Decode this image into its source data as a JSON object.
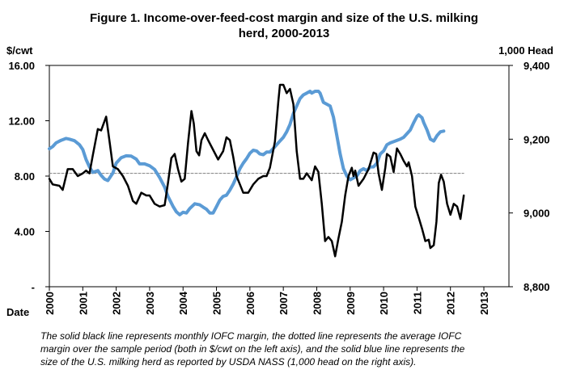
{
  "chart_data": {
    "type": "line",
    "title_lines": [
      "Figure 1. Income-over-feed-cost  margin and size of the U.S. milking",
      "herd, 2000-2013"
    ],
    "ylabel_left": "$/cwt",
    "ylabel_right": "1,000 Head",
    "xlabel": "Date",
    "left_axis": {
      "ylim": [
        0,
        16
      ],
      "ticks": [
        16,
        12,
        8,
        4,
        0
      ],
      "tick_labels": [
        "16.00",
        "12.00",
        "8.00",
        "4.00",
        "-"
      ]
    },
    "right_axis": {
      "ylim": [
        8800,
        9400
      ],
      "ticks": [
        9400,
        9200,
        9000,
        8800
      ],
      "tick_labels": [
        "9,400",
        "9,200",
        "9,000",
        "8,800"
      ]
    },
    "x_axis": {
      "xlim": [
        2000.0,
        2013.75
      ],
      "ticks": [
        2000,
        2001,
        2002,
        2003,
        2004,
        2005,
        2006,
        2007,
        2008,
        2009,
        2010,
        2011,
        2012,
        2013
      ],
      "tick_labels": [
        "2000",
        "2001",
        "2002",
        "2003",
        "2004",
        "2005",
        "2006",
        "2007",
        "2008",
        "2009",
        "2010",
        "2011",
        "2012",
        "2013"
      ]
    },
    "grid": false,
    "series": [
      {
        "name": "IOFC margin ($/cwt)",
        "axis": "left",
        "color": "#000000",
        "style": "solid",
        "points": [
          [
            2000.0,
            7.8
          ],
          [
            2000.1,
            7.4
          ],
          [
            2000.3,
            7.3
          ],
          [
            2000.4,
            7.0
          ],
          [
            2000.55,
            8.5
          ],
          [
            2000.7,
            8.5
          ],
          [
            2000.85,
            8.0
          ],
          [
            2001.0,
            8.2
          ],
          [
            2001.1,
            8.4
          ],
          [
            2001.2,
            8.2
          ],
          [
            2001.3,
            9.5
          ],
          [
            2001.45,
            11.4
          ],
          [
            2001.55,
            11.3
          ],
          [
            2001.7,
            12.3
          ],
          [
            2001.8,
            10.5
          ],
          [
            2001.9,
            8.7
          ],
          [
            2002.05,
            8.5
          ],
          [
            2002.2,
            8.0
          ],
          [
            2002.35,
            7.3
          ],
          [
            2002.5,
            6.2
          ],
          [
            2002.6,
            6.0
          ],
          [
            2002.75,
            6.8
          ],
          [
            2002.9,
            6.6
          ],
          [
            2003.0,
            6.6
          ],
          [
            2003.15,
            6.0
          ],
          [
            2003.3,
            5.8
          ],
          [
            2003.45,
            5.9
          ],
          [
            2003.55,
            7.5
          ],
          [
            2003.65,
            9.3
          ],
          [
            2003.75,
            9.6
          ],
          [
            2003.85,
            8.5
          ],
          [
            2003.95,
            7.6
          ],
          [
            2004.05,
            7.8
          ],
          [
            2004.15,
            10.4
          ],
          [
            2004.25,
            12.7
          ],
          [
            2004.32,
            11.8
          ],
          [
            2004.4,
            9.8
          ],
          [
            2004.48,
            9.5
          ],
          [
            2004.55,
            10.6
          ],
          [
            2004.65,
            11.1
          ],
          [
            2004.75,
            10.6
          ],
          [
            2004.9,
            9.9
          ],
          [
            2005.05,
            9.2
          ],
          [
            2005.2,
            9.8
          ],
          [
            2005.3,
            10.8
          ],
          [
            2005.4,
            10.6
          ],
          [
            2005.5,
            9.4
          ],
          [
            2005.6,
            8.0
          ],
          [
            2005.7,
            7.4
          ],
          [
            2005.8,
            6.8
          ],
          [
            2005.95,
            6.8
          ],
          [
            2006.1,
            7.4
          ],
          [
            2006.25,
            7.8
          ],
          [
            2006.4,
            8.0
          ],
          [
            2006.5,
            8.0
          ],
          [
            2006.6,
            8.6
          ],
          [
            2006.75,
            10.5
          ],
          [
            2006.85,
            13.4
          ],
          [
            2006.9,
            14.6
          ],
          [
            2007.0,
            14.6
          ],
          [
            2007.1,
            14.0
          ],
          [
            2007.2,
            14.3
          ],
          [
            2007.3,
            13.2
          ],
          [
            2007.4,
            9.8
          ],
          [
            2007.5,
            7.8
          ],
          [
            2007.6,
            7.8
          ],
          [
            2007.7,
            8.2
          ],
          [
            2007.85,
            7.7
          ],
          [
            2007.95,
            8.7
          ],
          [
            2008.05,
            8.3
          ],
          [
            2008.15,
            6.0
          ],
          [
            2008.25,
            3.3
          ],
          [
            2008.35,
            3.6
          ],
          [
            2008.45,
            3.3
          ],
          [
            2008.55,
            2.2
          ],
          [
            2008.65,
            3.5
          ],
          [
            2008.75,
            4.7
          ],
          [
            2008.85,
            6.6
          ],
          [
            2008.95,
            8.0
          ],
          [
            2009.05,
            8.6
          ],
          [
            2009.1,
            8.0
          ],
          [
            2009.15,
            8.4
          ],
          [
            2009.25,
            7.3
          ],
          [
            2009.4,
            7.8
          ],
          [
            2009.55,
            8.5
          ],
          [
            2009.7,
            9.7
          ],
          [
            2009.78,
            9.6
          ],
          [
            2009.85,
            8.2
          ],
          [
            2009.95,
            7.0
          ],
          [
            2010.05,
            8.6
          ],
          [
            2010.1,
            9.6
          ],
          [
            2010.2,
            9.4
          ],
          [
            2010.3,
            8.3
          ],
          [
            2010.4,
            10.0
          ],
          [
            2010.5,
            9.6
          ],
          [
            2010.6,
            9.1
          ],
          [
            2010.7,
            8.7
          ],
          [
            2010.75,
            9.0
          ],
          [
            2010.85,
            8.0
          ],
          [
            2010.95,
            5.8
          ],
          [
            2011.05,
            5.0
          ],
          [
            2011.15,
            4.2
          ],
          [
            2011.25,
            3.3
          ],
          [
            2011.35,
            3.4
          ],
          [
            2011.4,
            2.8
          ],
          [
            2011.5,
            3.0
          ],
          [
            2011.58,
            4.7
          ],
          [
            2011.65,
            7.5
          ],
          [
            2011.72,
            8.1
          ],
          [
            2011.8,
            7.6
          ],
          [
            2011.9,
            6.0
          ],
          [
            2012.0,
            5.2
          ],
          [
            2012.1,
            6.0
          ],
          [
            2012.2,
            5.8
          ],
          [
            2012.3,
            4.9
          ],
          [
            2012.4,
            6.6
          ]
        ]
      },
      {
        "name": "Average IOFC margin ($/cwt)",
        "axis": "left",
        "color": "#808080",
        "style": "dotted",
        "points": [
          [
            2000.0,
            8.2
          ],
          [
            2012.4,
            8.2
          ]
        ]
      },
      {
        "name": "U.S. milking herd (1,000 head)",
        "axis": "right",
        "color": "#5b9bd5",
        "style": "solid",
        "points": [
          [
            2000.0,
            9174
          ],
          [
            2000.1,
            9180
          ],
          [
            2000.2,
            9190
          ],
          [
            2000.35,
            9197
          ],
          [
            2000.5,
            9202
          ],
          [
            2000.6,
            9200
          ],
          [
            2000.75,
            9196
          ],
          [
            2000.9,
            9185
          ],
          [
            2001.0,
            9172
          ],
          [
            2001.1,
            9145
          ],
          [
            2001.2,
            9125
          ],
          [
            2001.3,
            9110
          ],
          [
            2001.45,
            9115
          ],
          [
            2001.55,
            9102
          ],
          [
            2001.65,
            9092
          ],
          [
            2001.75,
            9088
          ],
          [
            2001.9,
            9108
          ],
          [
            2002.0,
            9135
          ],
          [
            2002.15,
            9150
          ],
          [
            2002.3,
            9155
          ],
          [
            2002.45,
            9154
          ],
          [
            2002.6,
            9146
          ],
          [
            2002.7,
            9133
          ],
          [
            2002.85,
            9133
          ],
          [
            2003.0,
            9128
          ],
          [
            2003.15,
            9118
          ],
          [
            2003.3,
            9096
          ],
          [
            2003.45,
            9070
          ],
          [
            2003.55,
            9045
          ],
          [
            2003.7,
            9018
          ],
          [
            2003.8,
            9003
          ],
          [
            2003.9,
            8995
          ],
          [
            2004.0,
            9002
          ],
          [
            2004.1,
            9000
          ],
          [
            2004.2,
            9012
          ],
          [
            2004.35,
            9025
          ],
          [
            2004.5,
            9022
          ],
          [
            2004.6,
            9016
          ],
          [
            2004.7,
            9010
          ],
          [
            2004.8,
            9000
          ],
          [
            2004.9,
            9000
          ],
          [
            2005.0,
            9017
          ],
          [
            2005.1,
            9035
          ],
          [
            2005.2,
            9045
          ],
          [
            2005.3,
            9048
          ],
          [
            2005.4,
            9062
          ],
          [
            2005.5,
            9078
          ],
          [
            2005.6,
            9098
          ],
          [
            2005.7,
            9120
          ],
          [
            2005.8,
            9135
          ],
          [
            2005.9,
            9147
          ],
          [
            2006.0,
            9162
          ],
          [
            2006.1,
            9170
          ],
          [
            2006.2,
            9168
          ],
          [
            2006.3,
            9160
          ],
          [
            2006.4,
            9158
          ],
          [
            2006.5,
            9165
          ],
          [
            2006.6,
            9165
          ],
          [
            2006.7,
            9175
          ],
          [
            2006.8,
            9185
          ],
          [
            2006.9,
            9195
          ],
          [
            2007.0,
            9205
          ],
          [
            2007.1,
            9220
          ],
          [
            2007.2,
            9240
          ],
          [
            2007.3,
            9270
          ],
          [
            2007.4,
            9290
          ],
          [
            2007.5,
            9310
          ],
          [
            2007.6,
            9320
          ],
          [
            2007.7,
            9325
          ],
          [
            2007.8,
            9330
          ],
          [
            2007.85,
            9325
          ],
          [
            2007.95,
            9330
          ],
          [
            2008.05,
            9330
          ],
          [
            2008.1,
            9325
          ],
          [
            2008.2,
            9300
          ],
          [
            2008.3,
            9295
          ],
          [
            2008.4,
            9290
          ],
          [
            2008.5,
            9260
          ],
          [
            2008.6,
            9210
          ],
          [
            2008.7,
            9160
          ],
          [
            2008.8,
            9120
          ],
          [
            2008.9,
            9100
          ],
          [
            2009.0,
            9090
          ],
          [
            2009.1,
            9095
          ],
          [
            2009.2,
            9100
          ],
          [
            2009.3,
            9115
          ],
          [
            2009.4,
            9120
          ],
          [
            2009.5,
            9115
          ],
          [
            2009.6,
            9125
          ],
          [
            2009.7,
            9125
          ],
          [
            2009.8,
            9135
          ],
          [
            2009.9,
            9160
          ],
          [
            2010.0,
            9168
          ],
          [
            2010.1,
            9185
          ],
          [
            2010.2,
            9190
          ],
          [
            2010.35,
            9195
          ],
          [
            2010.5,
            9200
          ],
          [
            2010.6,
            9205
          ],
          [
            2010.7,
            9215
          ],
          [
            2010.8,
            9225
          ],
          [
            2010.9,
            9245
          ],
          [
            2011.0,
            9262
          ],
          [
            2011.05,
            9266
          ],
          [
            2011.15,
            9258
          ],
          [
            2011.2,
            9245
          ],
          [
            2011.3,
            9225
          ],
          [
            2011.4,
            9200
          ],
          [
            2011.5,
            9195
          ],
          [
            2011.6,
            9210
          ],
          [
            2011.7,
            9220
          ],
          [
            2011.8,
            9222
          ]
        ]
      }
    ]
  },
  "caption_lines": [
    "The solid black line represents monthly IOFC margin, the dotted line represents the  average  IOFC",
    "margin over the sample period (both in $/cwt on the left axis), and the solid blue line represents the",
    "size of the U.S. milking herd  as reported  by USDA NASS (1,000 head on the right axis)."
  ]
}
